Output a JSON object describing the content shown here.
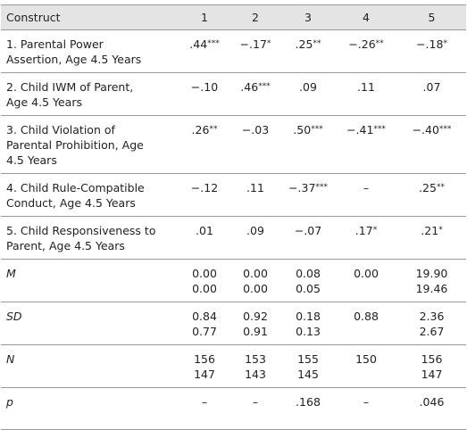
{
  "table": {
    "header": [
      "Construct",
      "1",
      "2",
      "3",
      "4",
      "5"
    ],
    "rows": [
      [
        [
          "1. Parental Power",
          "Assertion, Age 4.5 Years"
        ],
        [
          ".44***"
        ],
        [
          "−.17*"
        ],
        [
          ".25**"
        ],
        [
          "−.26**"
        ],
        [
          "−.18*"
        ]
      ],
      [
        [
          "2. Child IWM of Parent,",
          "Age 4.5 Years"
        ],
        [
          "−.10"
        ],
        [
          ".46***"
        ],
        [
          ".09"
        ],
        [
          ".11"
        ],
        [
          ".07"
        ]
      ],
      [
        [
          "3. Child Violation of",
          "Parental Prohibition, Age",
          "4.5 Years"
        ],
        [
          ".26**"
        ],
        [
          "−.03"
        ],
        [
          ".50***"
        ],
        [
          "−.41***"
        ],
        [
          "−.40***"
        ]
      ],
      [
        [
          "4. Child Rule-Compatible",
          "Conduct, Age 4.5 Years"
        ],
        [
          "−.12"
        ],
        [
          ".11"
        ],
        [
          "−.37***"
        ],
        [
          "–"
        ],
        [
          ".25**"
        ]
      ],
      [
        [
          "5. Child Responsiveness to",
          "Parent, Age 4.5 Years"
        ],
        [
          ".01"
        ],
        [
          ".09"
        ],
        [
          "−.07"
        ],
        [
          ".17*"
        ],
        [
          ".21*"
        ]
      ],
      [
        [
          "M"
        ],
        [
          "0.00",
          "0.00"
        ],
        [
          "0.00",
          "0.00"
        ],
        [
          "0.08",
          "0.05"
        ],
        [
          "0.00"
        ],
        [
          "19.90",
          "19.46"
        ]
      ],
      [
        [
          "SD"
        ],
        [
          "0.84",
          "0.77"
        ],
        [
          "0.92",
          "0.91"
        ],
        [
          "0.18",
          "0.13"
        ],
        [
          "0.88"
        ],
        [
          "2.36",
          "2.67"
        ]
      ],
      [
        [
          "N"
        ],
        [
          "156",
          "147"
        ],
        [
          "153",
          "143"
        ],
        [
          "155",
          "145"
        ],
        [
          "150"
        ],
        [
          "156",
          "147"
        ]
      ],
      [
        [
          "p"
        ],
        [
          "–"
        ],
        [
          "–"
        ],
        [
          ".168"
        ],
        [
          "–"
        ],
        [
          ".046"
        ]
      ]
    ]
  }
}
